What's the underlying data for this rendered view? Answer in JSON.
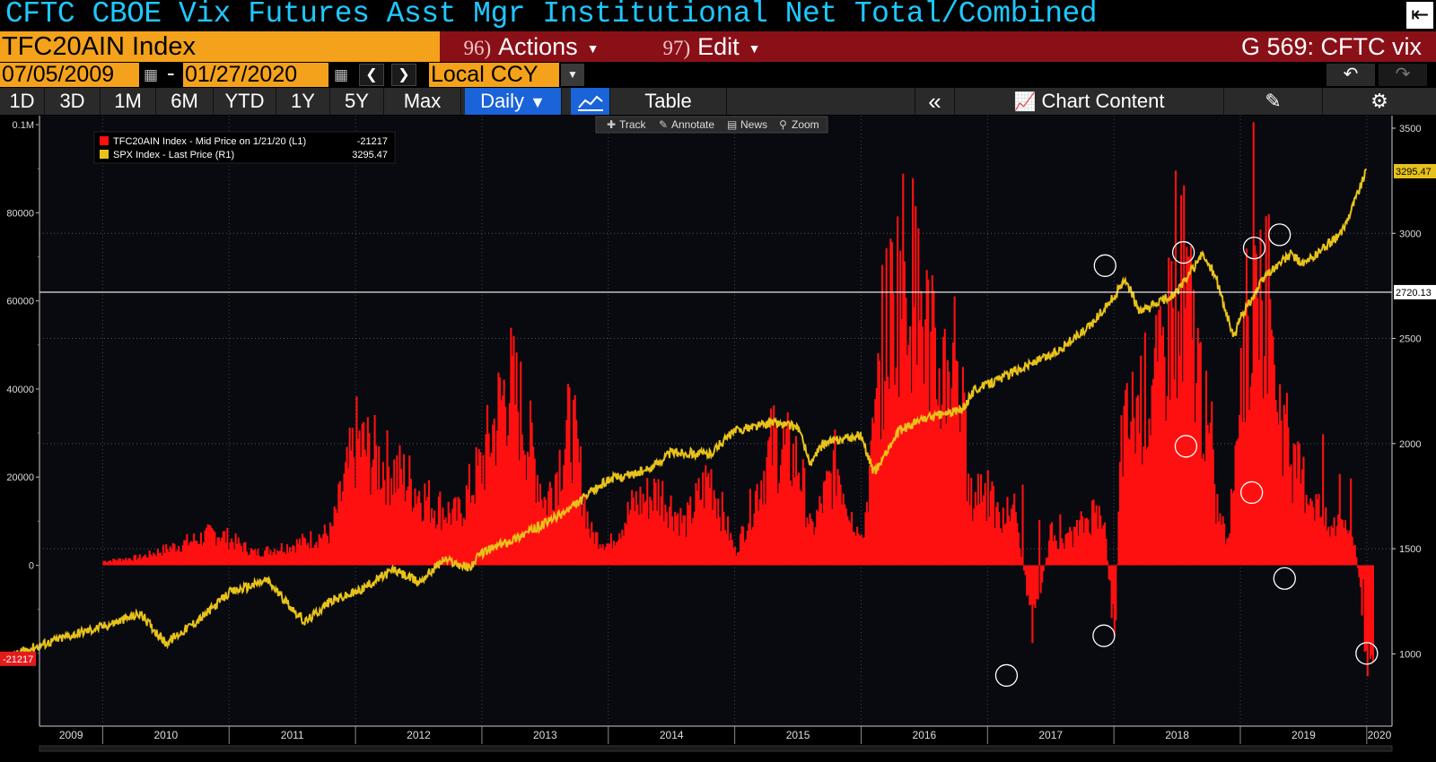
{
  "header": {
    "title": "CFTC CBOE Vix Futures Asst Mgr Institutional Net Total/Combined",
    "ticker": "TFC20AIN Index",
    "actions_num": "96)",
    "actions_label": "Actions",
    "edit_num": "97)",
    "edit_label": "Edit",
    "gcode": "G 569: CFTC vix"
  },
  "range": {
    "start_date": "07/05/2009",
    "end_date": "01/27/2020",
    "currency": "Local CCY"
  },
  "toolbar": {
    "periods": [
      "1D",
      "3D",
      "1M",
      "6M",
      "YTD",
      "1Y",
      "5Y",
      "Max"
    ],
    "frequency": "Daily",
    "table_label": "Table",
    "chart_content_label": "Chart Content"
  },
  "chart_tools": [
    "Track",
    "Annotate",
    "News",
    "Zoom"
  ],
  "colors": {
    "bars": "#ff1010",
    "spx_line": "#e8c21a",
    "title": "#1ec8ff",
    "ticker_bg": "#f4a21b",
    "menu_bg": "#8a1018"
  },
  "chart_data": {
    "type": "bar+line",
    "legend": [
      {
        "label": "TFC20AIN Index - Mid Price on 1/21/20 (L1)",
        "value": "-21217",
        "color": "#ff1010"
      },
      {
        "label": "SPX Index - Last Price (R1)",
        "value": "3295.47",
        "color": "#e8c21a"
      }
    ],
    "x_labels": [
      "2009",
      "2010",
      "2011",
      "2012",
      "2013",
      "2014",
      "2015",
      "2016",
      "2017",
      "2018",
      "2019",
      "2020"
    ],
    "left_axis": {
      "ticks": [
        "0.1M",
        "80000",
        "60000",
        "40000",
        "20000",
        "0"
      ],
      "range": [
        -30000,
        100000
      ],
      "last_value_label": "-21217"
    },
    "right_axis": {
      "ticks": [
        "3500",
        "3000",
        "2500",
        "2000",
        "1500",
        "1000"
      ],
      "range": [
        750,
        3500
      ],
      "last_value_label": "3295.47",
      "hline_label": "2720.13"
    },
    "series": [
      {
        "name": "TFC20AIN Index",
        "axis": "left",
        "x": [
          2010.0,
          2010.3,
          2010.6,
          2010.9,
          2011.2,
          2011.5,
          2011.8,
          2012.0,
          2012.2,
          2012.4,
          2012.6,
          2012.8,
          2013.0,
          2013.2,
          2013.3,
          2013.5,
          2013.7,
          2013.85,
          2014.0,
          2014.2,
          2014.4,
          2014.6,
          2014.8,
          2015.0,
          2015.3,
          2015.5,
          2015.6,
          2015.8,
          2016.0,
          2016.2,
          2016.35,
          2016.5,
          2016.6,
          2016.75,
          2016.85,
          2016.95,
          2017.1,
          2017.2,
          2017.35,
          2017.5,
          2017.6,
          2017.8,
          2017.9,
          2018.0,
          2018.05,
          2018.2,
          2018.35,
          2018.5,
          2018.6,
          2018.7,
          2018.8,
          2018.9,
          2019.0,
          2019.1,
          2019.2,
          2019.3,
          2019.4,
          2019.5,
          2019.6,
          2019.7,
          2019.8,
          2019.9,
          2020.0
        ],
        "values": [
          1000,
          2000,
          5000,
          8000,
          3000,
          5000,
          8000,
          30000,
          25000,
          21000,
          15000,
          12000,
          25000,
          45000,
          38000,
          15000,
          35000,
          8000,
          5000,
          15000,
          18000,
          10000,
          22000,
          3000,
          30000,
          25000,
          8000,
          25000,
          5000,
          60000,
          75000,
          60000,
          45000,
          55000,
          15000,
          20000,
          10000,
          15000,
          -15000,
          8000,
          5000,
          12000,
          15000,
          -18000,
          30000,
          40000,
          45000,
          70000,
          60000,
          40000,
          15000,
          5000,
          50000,
          65000,
          70000,
          40000,
          25000,
          20000,
          15000,
          8000,
          12000,
          5000,
          -21217
        ]
      },
      {
        "name": "SPX Index",
        "axis": "right",
        "x": [
          2009.0,
          2009.4,
          2009.7,
          2010.0,
          2010.3,
          2010.5,
          2010.8,
          2011.0,
          2011.3,
          2011.6,
          2011.8,
          2012.0,
          2012.3,
          2012.5,
          2012.7,
          2012.9,
          2013.0,
          2013.3,
          2013.5,
          2013.7,
          2014.0,
          2014.3,
          2014.5,
          2014.8,
          2015.0,
          2015.3,
          2015.5,
          2015.6,
          2015.7,
          2016.0,
          2016.1,
          2016.3,
          2016.5,
          2016.8,
          2016.9,
          2017.0,
          2017.3,
          2017.5,
          2017.8,
          2018.0,
          2018.1,
          2018.2,
          2018.5,
          2018.7,
          2018.8,
          2018.95,
          2019.0,
          2019.2,
          2019.4,
          2019.5,
          2019.7,
          2019.8,
          2020.0
        ],
        "values": [
          900,
          1020,
          1080,
          1130,
          1190,
          1050,
          1180,
          1290,
          1350,
          1150,
          1250,
          1290,
          1400,
          1340,
          1450,
          1410,
          1480,
          1560,
          1620,
          1690,
          1830,
          1870,
          1960,
          1950,
          2060,
          2100,
          2080,
          1900,
          2000,
          2040,
          1860,
          2060,
          2120,
          2160,
          2260,
          2280,
          2370,
          2420,
          2550,
          2700,
          2780,
          2620,
          2720,
          2900,
          2800,
          2500,
          2600,
          2800,
          2900,
          2850,
          2950,
          3000,
          3300
        ]
      }
    ],
    "annotations": [
      "circles marking turning points"
    ]
  }
}
